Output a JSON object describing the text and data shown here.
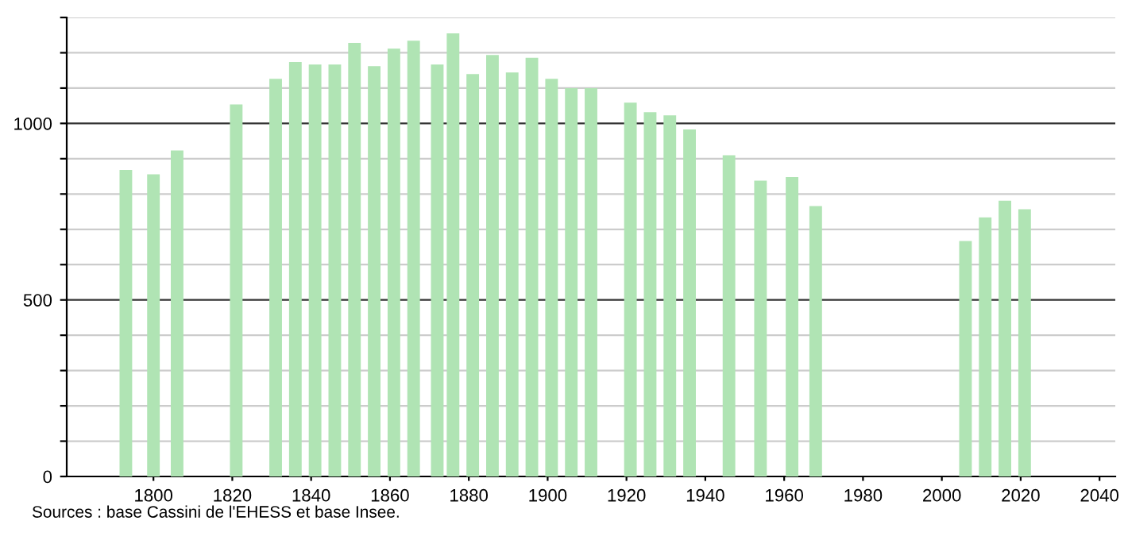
{
  "chart_data": {
    "type": "bar",
    "x": [
      1793,
      1800,
      1806,
      1821,
      1831,
      1836,
      1841,
      1846,
      1851,
      1856,
      1861,
      1866,
      1872,
      1876,
      1881,
      1886,
      1891,
      1896,
      1901,
      1906,
      1911,
      1921,
      1926,
      1931,
      1936,
      1946,
      1954,
      1962,
      1968,
      2006,
      2011,
      2016,
      2021
    ],
    "values": [
      868,
      856,
      923,
      1054,
      1126,
      1174,
      1167,
      1167,
      1228,
      1162,
      1212,
      1234,
      1167,
      1255,
      1140,
      1194,
      1144,
      1186,
      1126,
      1100,
      1100,
      1059,
      1032,
      1023,
      983,
      910,
      838,
      848,
      766,
      667,
      734,
      781,
      757
    ],
    "color": "#b0e4b4",
    "xlim": [
      1778,
      2044
    ],
    "xticks": [
      1800,
      1820,
      1840,
      1860,
      1880,
      1900,
      1920,
      1940,
      1960,
      1980,
      2000,
      2020,
      2040
    ],
    "ylim": [
      0,
      1300
    ],
    "yticks": [
      0,
      {
        "value": 100,
        "label": null
      },
      {
        "value": 200,
        "label": null
      },
      {
        "value": 300,
        "label": null
      },
      {
        "value": 400,
        "label": null
      },
      500,
      {
        "value": 600,
        "label": null
      },
      {
        "value": 700,
        "label": null
      },
      {
        "value": 800,
        "label": null
      },
      {
        "value": 900,
        "label": null
      },
      1000,
      {
        "value": 1100,
        "label": null
      },
      {
        "value": 1200,
        "label": null
      },
      {
        "value": 1300,
        "label": null
      }
    ],
    "grid": "y",
    "annotations": [
      "Sources : base Cassini de l'EHESS et base Insee."
    ]
  }
}
